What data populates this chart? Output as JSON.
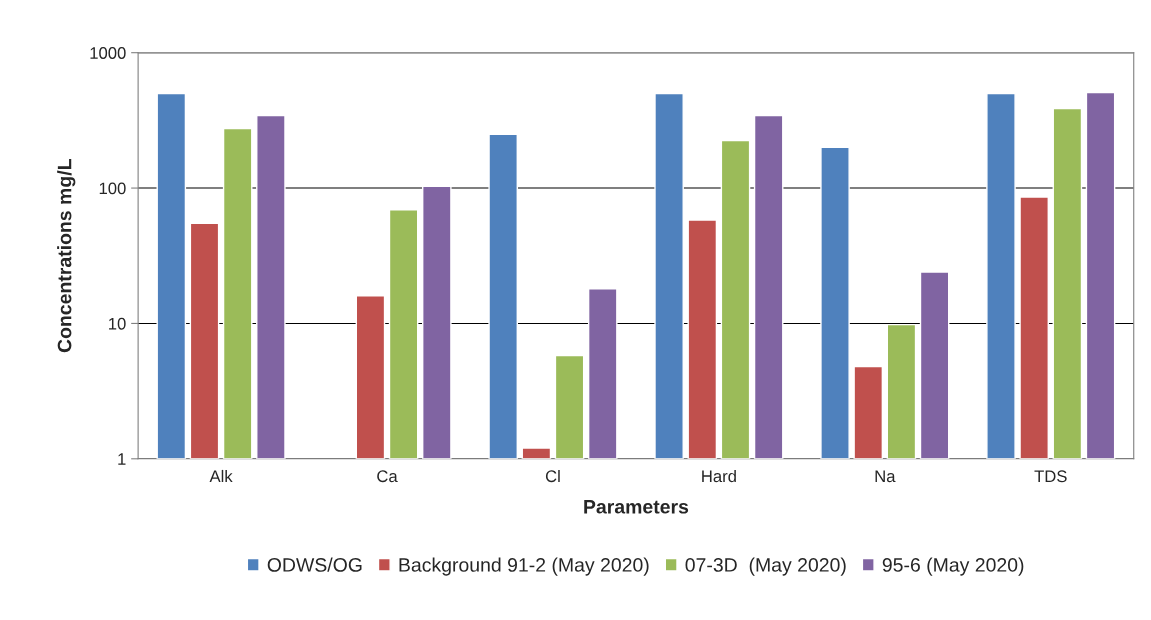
{
  "chart_data": {
    "type": "bar",
    "xlabel": "Parameters",
    "ylabel": "Concentrations mg/L",
    "categories": [
      "Alk",
      "Ca",
      "Cl",
      "Hard",
      "Na",
      "TDS"
    ],
    "series": [
      {
        "name": "ODWS/OG",
        "color": "#4f81bd",
        "values": [
          500,
          null,
          250,
          500,
          200,
          500
        ]
      },
      {
        "name": "Background 91-2 (May 2020)",
        "color": "#c0504d",
        "values": [
          55,
          16,
          1.2,
          58,
          4.8,
          86
        ]
      },
      {
        "name": "07-3D  (May 2020)",
        "color": "#9bbb59",
        "values": [
          275,
          69,
          5.8,
          224,
          9.8,
          386
        ]
      },
      {
        "name": "95-6 (May 2020)",
        "color": "#8064a2",
        "values": [
          343,
          103,
          18,
          343,
          24,
          507
        ]
      }
    ],
    "log": "y",
    "ylim": [
      1,
      1000
    ],
    "yticks": [
      1,
      10,
      100,
      1000
    ],
    "grid": "y",
    "legend": "bottom"
  }
}
